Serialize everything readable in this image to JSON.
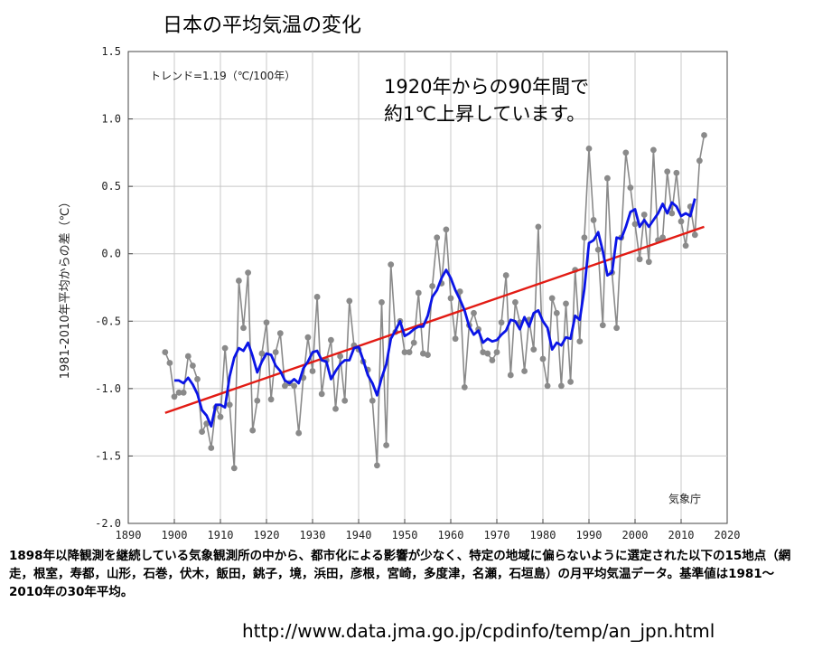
{
  "title": "日本の平均気温の変化",
  "annotation": [
    "1920年からの90年間で",
    "約1℃上昇しています。"
  ],
  "caption": "1898年以降観測を継続している気象観測所の中から、都市化による影響が少なく、特定の地域に偏らないように選定された以下の15地点（網走，根室，寿都，山形，石巻，伏木，飯田，銚子，境，浜田，彦根，宮崎，多度津，名瀬，石垣島）の月平均気温データ。基準値は1981〜2010年の30年平均。",
  "url": "http://www.data.jma.go.jp/cpdinfo/temp/an_jpn.html",
  "chart_data": {
    "type": "line",
    "title": "",
    "xlabel": "",
    "ylabel": "1981-2010年平均からの差（℃）",
    "xlim": [
      1890,
      2020
    ],
    "ylim": [
      -2.0,
      1.5
    ],
    "xticks": [
      1890,
      1900,
      1910,
      1920,
      1930,
      1940,
      1950,
      1960,
      1970,
      1980,
      1990,
      2000,
      2010,
      2020
    ],
    "yticks": [
      -2.0,
      -1.5,
      -1.0,
      -0.5,
      0.0,
      0.5,
      1.0,
      1.5
    ],
    "ytick_labels": [
      "-2.0",
      "-1.5",
      "-1.0",
      "-0.5",
      "0.0",
      "0.5",
      "1.0",
      "1.5"
    ],
    "grid": true,
    "trend_label": "トレンド=1.19（℃/100年）",
    "source_label": "気象庁",
    "colors": {
      "annual": "#8a8a8a",
      "marker": "#8a8a8a",
      "moving_average": "#0a14e6",
      "trend": "#e21b14"
    },
    "series": [
      {
        "kind": "annual",
        "x": [
          1898,
          1899,
          1900,
          1901,
          1902,
          1903,
          1904,
          1905,
          1906,
          1907,
          1908,
          1909,
          1910,
          1911,
          1912,
          1913,
          1914,
          1915,
          1916,
          1917,
          1918,
          1919,
          1920,
          1921,
          1922,
          1923,
          1924,
          1925,
          1926,
          1927,
          1928,
          1929,
          1930,
          1931,
          1932,
          1933,
          1934,
          1935,
          1936,
          1937,
          1938,
          1939,
          1940,
          1941,
          1942,
          1943,
          1944,
          1945,
          1946,
          1947,
          1948,
          1949,
          1950,
          1951,
          1952,
          1953,
          1954,
          1955,
          1956,
          1957,
          1958,
          1959,
          1960,
          1961,
          1962,
          1963,
          1964,
          1965,
          1966,
          1967,
          1968,
          1969,
          1970,
          1971,
          1972,
          1973,
          1974,
          1975,
          1976,
          1977,
          1978,
          1979,
          1980,
          1981,
          1982,
          1983,
          1984,
          1985,
          1986,
          1987,
          1988,
          1989,
          1990,
          1991,
          1992,
          1993,
          1994,
          1995,
          1996,
          1997,
          1998,
          1999,
          2000,
          2001,
          2002,
          2003,
          2004,
          2005,
          2006,
          2007,
          2008,
          2009,
          2010,
          2011,
          2012,
          2013,
          2014,
          2015
        ],
        "y": [
          -0.73,
          -0.81,
          -1.06,
          -1.03,
          -1.03,
          -0.76,
          -0.83,
          -0.93,
          -1.32,
          -1.26,
          -1.44,
          -1.14,
          -1.21,
          -0.7,
          -1.12,
          -1.59,
          -0.2,
          -0.55,
          -0.14,
          -1.31,
          -1.09,
          -0.74,
          -0.51,
          -1.08,
          -0.73,
          -0.59,
          -0.98,
          -0.96,
          -0.98,
          -1.33,
          -0.92,
          -0.62,
          -0.87,
          -0.32,
          -1.04,
          -0.79,
          -0.64,
          -1.15,
          -0.76,
          -1.09,
          -0.35,
          -0.68,
          -0.71,
          -0.8,
          -0.86,
          -1.09,
          -1.57,
          -0.36,
          -1.42,
          -0.08,
          -0.58,
          -0.5,
          -0.73,
          -0.73,
          -0.66,
          -0.29,
          -0.74,
          -0.75,
          -0.24,
          0.12,
          -0.22,
          0.18,
          -0.33,
          -0.63,
          -0.28,
          -0.99,
          -0.53,
          -0.44,
          -0.56,
          -0.73,
          -0.74,
          -0.79,
          -0.73,
          -0.51,
          -0.16,
          -0.9,
          -0.36,
          -0.51,
          -0.87,
          -0.49,
          -0.71,
          0.2,
          -0.78,
          -0.98,
          -0.33,
          -0.44,
          -0.98,
          -0.37,
          -0.95,
          -0.12,
          -0.65,
          0.12,
          0.78,
          0.25,
          0.03,
          -0.53,
          0.56,
          -0.14,
          -0.55,
          0.12,
          0.75,
          0.49,
          0.22,
          -0.04,
          0.29,
          -0.06,
          0.77,
          0.1,
          0.12,
          0.61,
          0.3,
          0.6,
          0.24,
          0.06,
          0.35,
          0.14,
          0.69,
          0.88
        ]
      },
      {
        "kind": "moving_average",
        "x": [
          1900,
          1901,
          1902,
          1903,
          1904,
          1905,
          1906,
          1907,
          1908,
          1909,
          1910,
          1911,
          1912,
          1913,
          1914,
          1915,
          1916,
          1917,
          1918,
          1919,
          1920,
          1921,
          1922,
          1923,
          1924,
          1925,
          1926,
          1927,
          1928,
          1929,
          1930,
          1931,
          1932,
          1933,
          1934,
          1935,
          1936,
          1937,
          1938,
          1939,
          1940,
          1941,
          1942,
          1943,
          1944,
          1945,
          1946,
          1947,
          1948,
          1949,
          1950,
          1951,
          1952,
          1953,
          1954,
          1955,
          1956,
          1957,
          1958,
          1959,
          1960,
          1961,
          1962,
          1963,
          1964,
          1965,
          1966,
          1967,
          1968,
          1969,
          1970,
          1971,
          1972,
          1973,
          1974,
          1975,
          1976,
          1977,
          1978,
          1979,
          1980,
          1981,
          1982,
          1983,
          1984,
          1985,
          1986,
          1987,
          1988,
          1989,
          1990,
          1991,
          1992,
          1993,
          1994,
          1995,
          1996,
          1997,
          1998,
          1999,
          2000,
          2001,
          2002,
          2003,
          2004,
          2005,
          2006,
          2007,
          2008,
          2009,
          2010,
          2011,
          2012,
          2013
        ],
        "y": [
          -0.94,
          -0.94,
          -0.96,
          -0.92,
          -0.97,
          -1.04,
          -1.16,
          -1.2,
          -1.28,
          -1.12,
          -1.12,
          -1.14,
          -0.91,
          -0.77,
          -0.7,
          -0.72,
          -0.66,
          -0.76,
          -0.88,
          -0.8,
          -0.74,
          -0.75,
          -0.83,
          -0.87,
          -0.94,
          -0.96,
          -0.93,
          -0.96,
          -0.85,
          -0.8,
          -0.73,
          -0.72,
          -0.79,
          -0.8,
          -0.93,
          -0.87,
          -0.82,
          -0.79,
          -0.79,
          -0.7,
          -0.69,
          -0.79,
          -0.9,
          -0.96,
          -1.05,
          -0.92,
          -0.82,
          -0.63,
          -0.57,
          -0.5,
          -0.61,
          -0.59,
          -0.56,
          -0.54,
          -0.54,
          -0.46,
          -0.32,
          -0.27,
          -0.18,
          -0.12,
          -0.18,
          -0.27,
          -0.34,
          -0.42,
          -0.54,
          -0.6,
          -0.57,
          -0.66,
          -0.63,
          -0.65,
          -0.64,
          -0.6,
          -0.57,
          -0.49,
          -0.5,
          -0.56,
          -0.47,
          -0.54,
          -0.44,
          -0.42,
          -0.5,
          -0.55,
          -0.71,
          -0.66,
          -0.68,
          -0.62,
          -0.63,
          -0.46,
          -0.49,
          -0.26,
          0.08,
          0.1,
          0.16,
          0.02,
          -0.16,
          -0.14,
          0.12,
          0.11,
          0.2,
          0.31,
          0.33,
          0.2,
          0.25,
          0.2,
          0.25,
          0.3,
          0.37,
          0.3,
          0.38,
          0.35,
          0.28,
          0.3,
          0.28,
          0.41
        ]
      },
      {
        "kind": "trend",
        "x": [
          1898,
          2015
        ],
        "y": [
          -1.18,
          0.2
        ]
      }
    ]
  }
}
